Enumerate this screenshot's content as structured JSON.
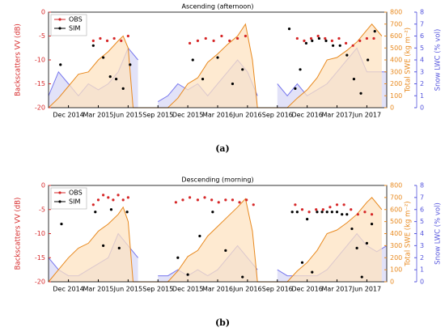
{
  "chart_data": [
    {
      "type": "line",
      "title": "Ascending (afternoon)",
      "caption": "(a)",
      "ylabel": "Backscatters VV (dB)",
      "y2label": "Total SWE (kg m⁻²)",
      "y3label": "Snow LWC (% vol)",
      "ycolor": "#d62728",
      "y2color": "#e8891e",
      "y3color": "#5555dd",
      "xlim": [
        0,
        34
      ],
      "xticks": [
        {
          "value": 2,
          "label": "Dec 2014"
        },
        {
          "value": 5,
          "label": "Mar 2015"
        },
        {
          "value": 8,
          "label": "Jun 2015"
        },
        {
          "value": 11,
          "label": "Sep 2015"
        },
        {
          "value": 14,
          "label": "Dec 2015"
        },
        {
          "value": 17,
          "label": "Mar 2016"
        },
        {
          "value": 20,
          "label": "Jun 2016"
        },
        {
          "value": 23,
          "label": "Sep 2016"
        },
        {
          "value": 26,
          "label": "Dec 2016"
        },
        {
          "value": 29,
          "label": "Mar 2017"
        },
        {
          "value": 32,
          "label": "Jun 2017"
        }
      ],
      "ylim": [
        -20,
        0
      ],
      "yticks": [
        -20,
        -15,
        -10,
        -5,
        0
      ],
      "y2lim": [
        0,
        800
      ],
      "y2ticks": [
        0,
        100,
        200,
        300,
        400,
        500,
        600,
        700,
        800
      ],
      "y3lim": [
        0,
        8
      ],
      "y3ticks": [
        0,
        1,
        2,
        3,
        4,
        5,
        6,
        7,
        8
      ],
      "legend": "upper left",
      "series": [
        {
          "axis": "y3",
          "color": "#7777ee",
          "fill": "#d8d8f6",
          "x": [
            0,
            1,
            2,
            3,
            4,
            5,
            6,
            7,
            8,
            9,
            10,
            11,
            12,
            13,
            14,
            15,
            16,
            17,
            18,
            19,
            20,
            21,
            22,
            23,
            24,
            25,
            26,
            27,
            28,
            29,
            30,
            31,
            32,
            33,
            34
          ],
          "values": [
            1,
            3,
            2,
            1,
            2,
            1.5,
            2,
            3,
            5,
            4,
            null,
            0.5,
            1,
            2,
            1.5,
            2,
            1,
            2,
            3,
            4,
            3,
            1,
            null,
            2,
            1,
            2,
            1,
            1.5,
            2,
            3,
            4,
            5,
            3,
            3,
            3
          ]
        },
        {
          "axis": "y2",
          "color": "#e8891e",
          "fill": "#fde3c2",
          "x": [
            0,
            1,
            2,
            3,
            4,
            5,
            6,
            7,
            7.5,
            8,
            8.5,
            9,
            12,
            13,
            14,
            15,
            16,
            17,
            18,
            19,
            19.8,
            20.5,
            21,
            23,
            24,
            25,
            26,
            27,
            28,
            29,
            30,
            31,
            32,
            32.5,
            33.5
          ],
          "values": [
            0,
            80,
            180,
            280,
            300,
            400,
            470,
            560,
            600,
            500,
            0,
            0,
            0,
            80,
            200,
            250,
            380,
            450,
            530,
            600,
            700,
            400,
            0,
            0,
            0,
            80,
            150,
            250,
            400,
            420,
            480,
            550,
            650,
            700,
            600
          ]
        },
        {
          "name": "OBS",
          "color": "#d62728",
          "x": [
            4.5,
            5.2,
            5.9,
            6.6,
            7.3,
            8.0,
            14.2,
            15.0,
            15.8,
            16.6,
            17.4,
            18.2,
            19.0,
            19.8,
            25.0,
            25.7,
            26.4,
            27.1,
            27.8,
            28.5,
            29.2,
            29.9,
            30.6,
            31.3,
            32.0,
            32.7
          ],
          "values": [
            -6,
            -5.5,
            -6,
            -5.5,
            -6,
            -5,
            -6.5,
            -6,
            -5.5,
            -6,
            -5,
            -6,
            -5.5,
            -5,
            -5.5,
            -6,
            -5.5,
            -5,
            -5.5,
            -6,
            -5.5,
            -6.5,
            -7,
            -6,
            -5.5,
            -5.5
          ]
        },
        {
          "name": "SIM",
          "color": "#000000",
          "x": [
            1.2,
            4.5,
            5.5,
            6.2,
            6.8,
            7.5,
            8.2,
            14.5,
            15.5,
            17.0,
            18.5,
            19.5,
            24.2,
            24.8,
            25.3,
            25.9,
            26.5,
            27.2,
            27.9,
            28.6,
            29.3,
            30.0,
            30.7,
            31.4,
            32.1,
            32.8
          ],
          "values": [
            -11,
            -7,
            -9.5,
            -13.5,
            -14,
            -16,
            -11,
            -10,
            -14,
            -9.5,
            -15,
            -12,
            -3.5,
            -16,
            -12,
            -6.5,
            -6,
            -5.5,
            -6,
            -7,
            -7,
            -9,
            -14,
            -17,
            -10,
            -4
          ]
        }
      ]
    },
    {
      "type": "line",
      "title": "Descending (morning)",
      "caption": "(b)",
      "ylabel": "Backscatters VV (dB)",
      "y2label": "Total SWE (kg m⁻²)",
      "y3label": "Snow LWC (% vol)",
      "ycolor": "#d62728",
      "y2color": "#e8891e",
      "y3color": "#5555dd",
      "xlim": [
        0,
        34
      ],
      "xticks": [
        {
          "value": 2,
          "label": "Dec 2014"
        },
        {
          "value": 5,
          "label": "Mar 2015"
        },
        {
          "value": 8,
          "label": "Jun 2015"
        },
        {
          "value": 11,
          "label": "Sep 2015"
        },
        {
          "value": 14,
          "label": "Dec 2015"
        },
        {
          "value": 17,
          "label": "Mar 2016"
        },
        {
          "value": 20,
          "label": "Jun 2016"
        },
        {
          "value": 23,
          "label": "Sep 2016"
        },
        {
          "value": 26,
          "label": "Dec 2016"
        },
        {
          "value": 29,
          "label": "Mar 2017"
        },
        {
          "value": 32,
          "label": "Jun 2017"
        }
      ],
      "ylim": [
        -20,
        0
      ],
      "yticks": [
        -20,
        -15,
        -10,
        -5,
        0
      ],
      "y2lim": [
        0,
        800
      ],
      "y2ticks": [
        0,
        100,
        200,
        300,
        400,
        500,
        600,
        700,
        800
      ],
      "y3lim": [
        0,
        8
      ],
      "y3ticks": [
        0,
        1,
        2,
        3,
        4,
        5,
        6,
        7,
        8
      ],
      "legend": "upper left",
      "series": [
        {
          "axis": "y3",
          "color": "#7777ee",
          "fill": "#d8d8f6",
          "x": [
            0,
            1,
            2,
            3,
            4,
            5,
            6,
            7,
            8,
            9,
            10,
            11,
            12,
            13,
            14,
            15,
            16,
            17,
            18,
            19,
            20,
            21,
            22,
            23,
            24,
            25,
            26,
            27,
            28,
            29,
            30,
            31,
            32,
            33,
            34
          ],
          "values": [
            2,
            1,
            0.5,
            0.5,
            1,
            1.5,
            2,
            4,
            3,
            2,
            null,
            0.5,
            0.5,
            1,
            0.5,
            1,
            0.5,
            1,
            2,
            3,
            2,
            1,
            null,
            1,
            0.5,
            0.5,
            0.5,
            0.5,
            1,
            2,
            3,
            4,
            3,
            2.5,
            3
          ]
        },
        {
          "axis": "y2",
          "color": "#e8891e",
          "fill": "#fde3c2",
          "x": [
            0,
            1,
            2,
            3,
            4,
            5,
            6,
            7,
            7.5,
            8,
            8.5,
            9,
            12,
            13,
            14,
            15,
            16,
            17,
            18,
            19,
            19.8,
            20.5,
            21,
            23,
            24,
            25,
            26,
            27,
            28,
            29,
            30,
            31,
            32,
            32.5,
            33.5
          ],
          "values": [
            0,
            100,
            200,
            280,
            320,
            420,
            480,
            560,
            620,
            500,
            0,
            0,
            0,
            90,
            210,
            260,
            380,
            460,
            540,
            620,
            690,
            420,
            0,
            0,
            0,
            90,
            160,
            260,
            400,
            430,
            490,
            560,
            660,
            700,
            600
          ]
        },
        {
          "name": "OBS",
          "color": "#d62728",
          "x": [
            4.5,
            5,
            5.5,
            6,
            6.5,
            7,
            7.5,
            8,
            12.8,
            13.5,
            14.2,
            15,
            15.7,
            16.4,
            17.1,
            17.8,
            18.5,
            19.2,
            19.9,
            20.6,
            24.8,
            25.5,
            26.2,
            26.9,
            27.6,
            28.3,
            29,
            29.7,
            30.4,
            31.1,
            31.8,
            32.5
          ],
          "values": [
            -4,
            -3,
            -2,
            -2.5,
            -3,
            -2,
            -3,
            -2.5,
            -3.5,
            -3,
            -2.5,
            -3,
            -2.5,
            -3,
            -3.5,
            -3,
            -3,
            -3.5,
            -3,
            -4,
            -4,
            -5,
            -5.5,
            -5,
            -5,
            -4.5,
            -4,
            -4,
            -5,
            -6,
            -5.5,
            -6
          ]
        },
        {
          "name": "SIM",
          "color": "#000000",
          "x": [
            1.3,
            4.7,
            5.5,
            6.3,
            7.1,
            7.9,
            13,
            14,
            15.2,
            16.5,
            17.8,
            19.5,
            24.5,
            25,
            25.5,
            26,
            26.5,
            27,
            27.5,
            28,
            28.5,
            29,
            29.5,
            30,
            30.5,
            31,
            31.5,
            32,
            32.5
          ],
          "values": [
            -8,
            -5.5,
            -12.5,
            -5,
            -13,
            -5.5,
            -15,
            -18.5,
            -10.5,
            -5.5,
            -13.5,
            -19,
            -5.5,
            -5.5,
            -16,
            -7,
            -18,
            -5.5,
            -5.5,
            -5.5,
            -5.5,
            -5.5,
            -6,
            -6,
            -9,
            -13,
            -19,
            -12,
            -8
          ]
        }
      ]
    }
  ]
}
